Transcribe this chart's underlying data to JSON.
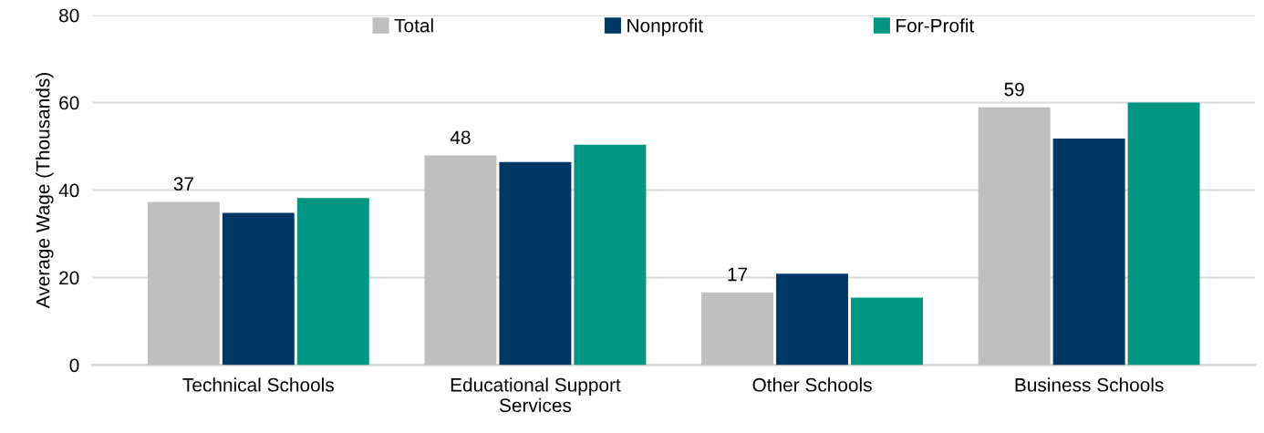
{
  "chart_data": {
    "type": "bar",
    "ylabel": "Average Wage (Thousands)",
    "categories": [
      "Technical Schools",
      "Educational Support\nServices",
      "Other Schools",
      "Business Schools"
    ],
    "series": [
      {
        "name": "Total",
        "color": "#bfbfbf",
        "values": [
          37.3,
          47.9,
          16.6,
          58.9
        ],
        "value_labels": [
          "37",
          "48",
          "17",
          "59"
        ]
      },
      {
        "name": "Nonprofit",
        "color": "#003764",
        "values": [
          34.8,
          46.4,
          20.9,
          51.8
        ]
      },
      {
        "name": "For-Profit",
        "color": "#009682",
        "values": [
          38.2,
          50.4,
          15.4,
          60.0
        ]
      }
    ],
    "ylim": [
      0,
      80
    ],
    "yticks": [
      0,
      20,
      40,
      60,
      80
    ],
    "grid": "y",
    "legend": "top"
  }
}
